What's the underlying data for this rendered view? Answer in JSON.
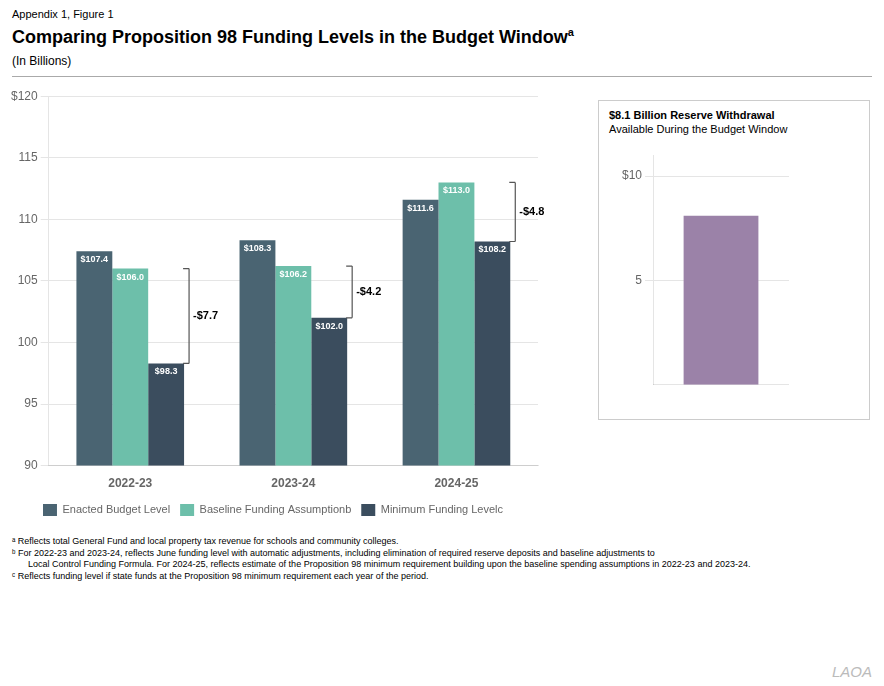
{
  "appendix_label": "Appendix 1, Figure 1",
  "chart_data": [
    {
      "type": "bar",
      "title": "Comparing Proposition 98 Funding Levels in the Budget Window",
      "title_superscript": "a",
      "subtitle": "(In Billions)",
      "categories": [
        "2022-23",
        "2023-24",
        "2024-25"
      ],
      "series": [
        {
          "name": "Enacted Budget Level",
          "color": "#4a6472",
          "values": [
            107.4,
            108.3,
            111.6
          ],
          "value_labels": [
            "$107.4",
            "$108.3",
            "$111.6"
          ]
        },
        {
          "name": "Baseline Funding Assumptionb",
          "color": "#6dbfaa",
          "values": [
            106.0,
            106.2,
            113.0
          ],
          "value_labels": [
            "$106.0",
            "$106.2",
            "$113.0"
          ]
        },
        {
          "name": "Minimum Funding Levelc",
          "color": "#3b4d5e",
          "values": [
            98.3,
            102.0,
            108.2
          ],
          "value_labels": [
            "$98.3",
            "$102.0",
            "$108.2"
          ]
        }
      ],
      "ylim": [
        90,
        120
      ],
      "yticks": [
        90,
        95,
        100,
        105,
        110,
        115,
        {
          "value": 120,
          "label": "$120"
        }
      ],
      "grid": true,
      "legend": "bottom",
      "data_labels": true,
      "brackets": [
        {
          "category": "2022-23",
          "from": "Baseline Funding Assumptionb",
          "to": "Minimum Funding Levelc",
          "label": "-$7.7"
        },
        {
          "category": "2023-24",
          "from": "Baseline Funding Assumptionb",
          "to": "Minimum Funding Levelc",
          "label": "-$4.2"
        },
        {
          "category": "2024-25",
          "from": "Baseline Funding Assumptionb",
          "to": "Minimum Funding Levelc",
          "label": "-$4.8"
        }
      ]
    },
    {
      "type": "bar",
      "title": "$8.1 Billion Reserve Withdrawal",
      "subtitle": "Available During the Budget Window",
      "categories": [
        null
      ],
      "values": [
        8.1
      ],
      "color": "#9b82a8",
      "ylim": [
        0,
        11
      ],
      "yticks": [
        5,
        {
          "value": 10,
          "label": "$10"
        }
      ],
      "grid": true,
      "tick_labels": "y"
    }
  ],
  "footnotes": [
    "ᵃ Reflects total General Fund and local property tax revenue for schools and community colleges.",
    "ᵇ For 2022-23 and 2023-24, reflects June funding level with automatic adjustments, including elimination of required reserve deposits and baseline adjustments to",
    "Local Control Funding Formula. For 2024-25, reflects estimate of the Proposition 98 minimum requirement building upon the baseline spending assumptions in 2022-23 and 2023-24.",
    "ᶜ Reflects funding level if state funds at the Proposition 98 minimum requirement each year of the period."
  ],
  "lao_watermark": "LAOA"
}
